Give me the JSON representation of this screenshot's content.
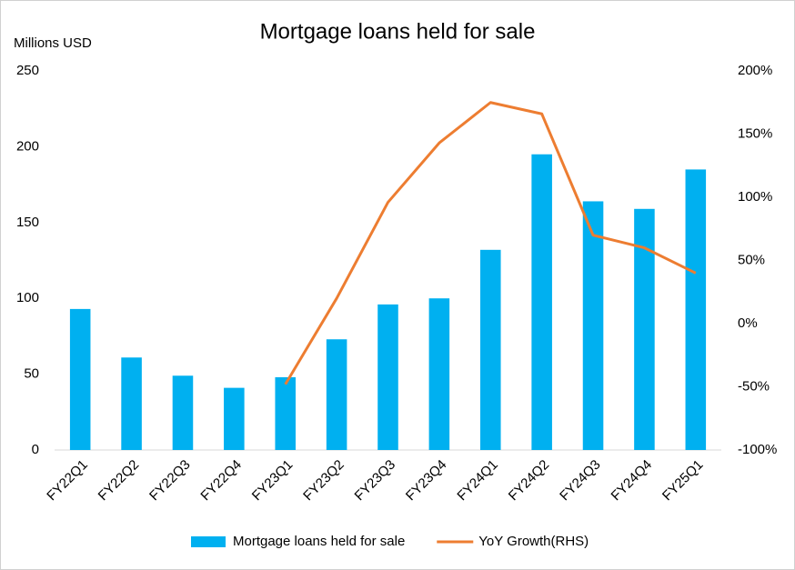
{
  "chart_data": {
    "type": "bar",
    "title": "Mortgage loans held for sale",
    "y_label": "Millions USD",
    "categories": [
      "FY22Q1",
      "FY22Q2",
      "FY22Q3",
      "FY22Q4",
      "FY23Q1",
      "FY23Q2",
      "FY23Q3",
      "FY23Q4",
      "FY24Q1",
      "FY24Q2",
      "FY24Q3",
      "FY24Q4",
      "FY25Q1"
    ],
    "series": [
      {
        "name": "Mortgage loans held for sale",
        "type": "bar",
        "color": "#00b0f0",
        "values": [
          93,
          61,
          49,
          41,
          48,
          73,
          96,
          100,
          132,
          195,
          164,
          159,
          185
        ]
      },
      {
        "name": "YoY Growth(RHS)",
        "type": "line",
        "axis": "y2",
        "color": "#ed7d31",
        "values": [
          null,
          null,
          null,
          null,
          -48,
          20,
          96,
          143,
          175,
          166,
          70,
          60,
          40
        ]
      }
    ],
    "ylim": [
      0,
      250
    ],
    "yticks": [
      0,
      50,
      100,
      150,
      200,
      250
    ],
    "y2lim": [
      -100,
      200
    ],
    "y2ticks": [
      {
        "value": -100,
        "label": "-100%"
      },
      {
        "value": -50,
        "label": "-50%"
      },
      {
        "value": 0,
        "label": "0%"
      },
      {
        "value": 50,
        "label": "50%"
      },
      {
        "value": 100,
        "label": "100%"
      },
      {
        "value": 150,
        "label": "150%"
      },
      {
        "value": 200,
        "label": "200%"
      }
    ],
    "legend": "bottom"
  }
}
